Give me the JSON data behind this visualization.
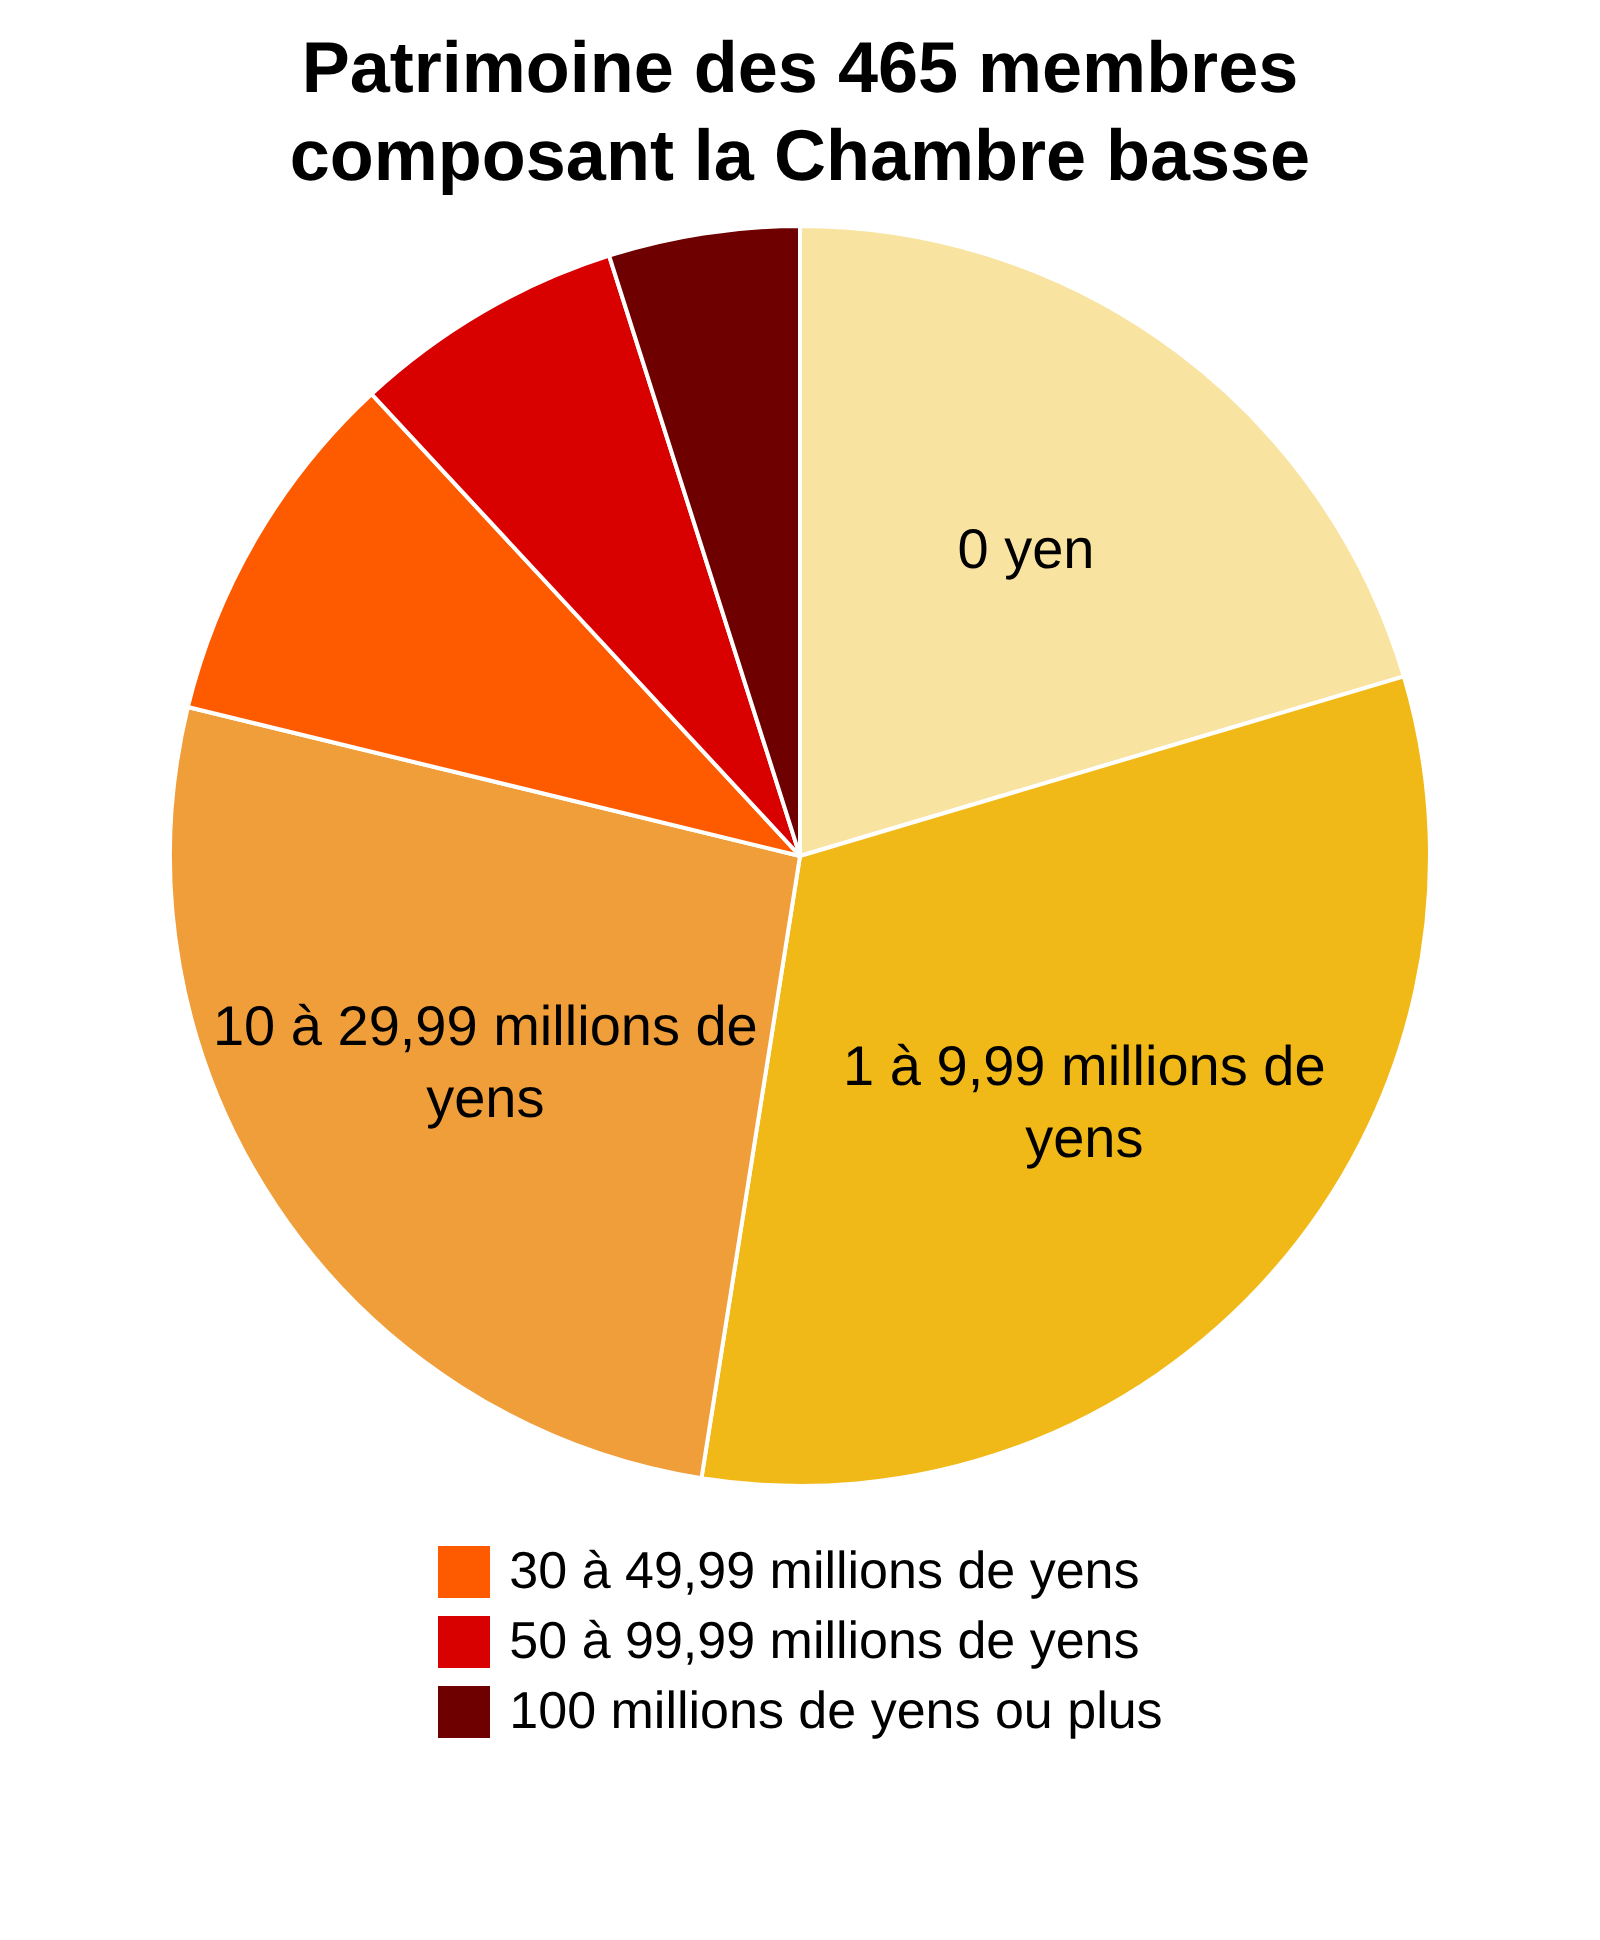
{
  "chart_data": {
    "type": "pie",
    "title": "Patrimoine des 465 membres composant la Chambre basse",
    "categories": [
      "0 yen",
      "1 à 9,99 millions de yens",
      "10 à 29,99 millions de yens",
      "30 à 49,99 millions de yens",
      "50 à 99,99 millions de yens",
      "100 millions de yens ou plus"
    ],
    "values": [
      20.4,
      32.1,
      26.3,
      9.3,
      7.0,
      4.9
    ],
    "colors": [
      "#f8e3a0",
      "#f1b917",
      "#f09e3a",
      "#fe5a00",
      "#d90000",
      "#6e0000"
    ],
    "legend": "bottom"
  }
}
